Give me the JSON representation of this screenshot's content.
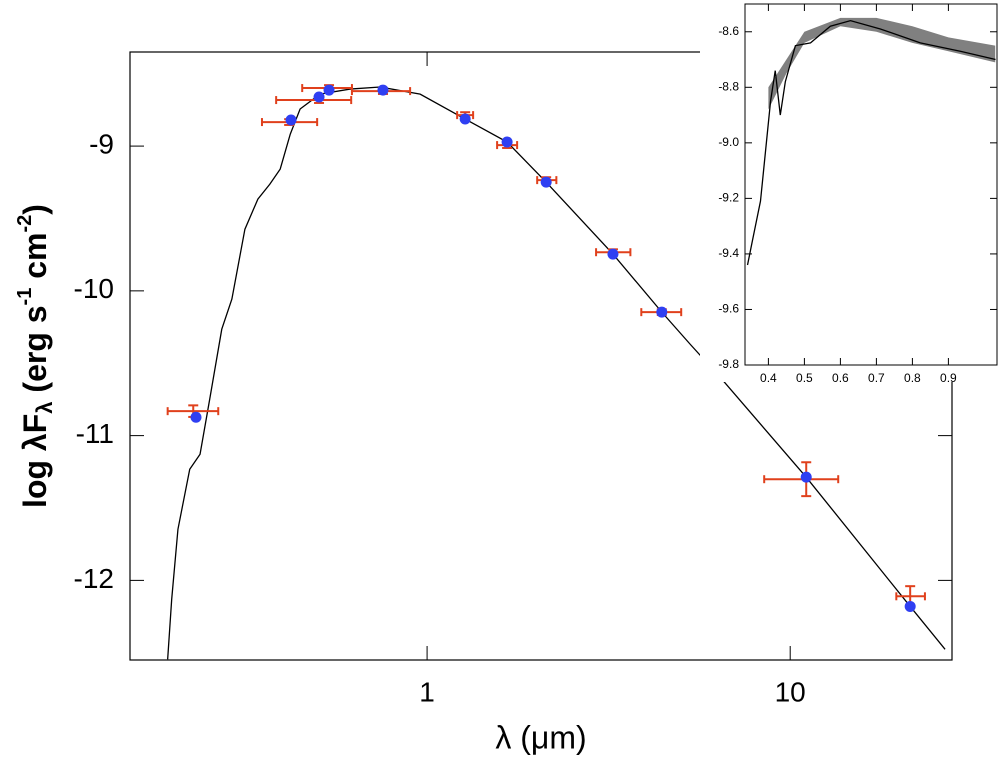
{
  "chart_data": [
    {
      "type": "sed",
      "xlabel": "λ (μm)",
      "ylabel": [
        "log λF",
        "λ",
        " (erg s",
        "-1",
        " cm",
        "-2",
        ")"
      ],
      "xlog": true,
      "xlim": [
        0.152,
        27.9
      ],
      "ylim": [
        -12.55,
        -8.35
      ],
      "xticks": [
        1,
        10
      ],
      "yticks": [
        -9,
        -10,
        -11,
        -12
      ],
      "model": {
        "color": "#000000",
        "x": [
          0.193,
          0.198,
          0.206,
          0.222,
          0.237,
          0.252,
          0.272,
          0.29,
          0.315,
          0.342,
          0.369,
          0.394,
          0.42,
          0.447,
          0.507,
          0.614,
          0.743,
          0.957,
          1.273,
          1.661,
          2.128,
          3.25,
          4.43,
          5.3,
          6.41,
          11.07,
          21.4,
          26.7
        ],
        "y": [
          -12.545,
          -12.131,
          -11.647,
          -11.232,
          -11.129,
          -10.748,
          -10.265,
          -10.057,
          -9.574,
          -9.366,
          -9.263,
          -9.159,
          -8.917,
          -8.744,
          -8.641,
          -8.606,
          -8.592,
          -8.641,
          -8.813,
          -8.972,
          -9.249,
          -9.746,
          -10.147,
          -10.368,
          -10.596,
          -11.287,
          -12.18,
          -12.476
        ]
      },
      "photometry": {
        "color": "#2f3ff2",
        "x": [
          0.231,
          0.422,
          0.504,
          0.537,
          0.756,
          1.273,
          1.661,
          2.128,
          3.25,
          4.43,
          11.07,
          21.4
        ],
        "y": [
          -10.873,
          -8.82,
          -8.661,
          -8.613,
          -8.613,
          -8.813,
          -8.972,
          -9.249,
          -9.746,
          -10.147,
          -11.287,
          -12.18
        ]
      },
      "observed": {
        "color": "#e0401c",
        "x": [
          0.227,
          0.417,
          0.504,
          0.537,
          0.756,
          1.273,
          1.661,
          2.128,
          3.25,
          4.43,
          11.07,
          21.4
        ],
        "y": [
          -10.831,
          -8.834,
          -8.682,
          -8.599,
          -8.62,
          -8.786,
          -8.993,
          -9.235,
          -9.733,
          -10.147,
          -11.301,
          -12.11
        ],
        "x_low": [
          0.193,
          0.351,
          0.384,
          0.453,
          0.621,
          1.21,
          1.559,
          2.01,
          2.92,
          3.89,
          8.48,
          19.6
        ],
        "x_high": [
          0.266,
          0.498,
          0.618,
          0.621,
          0.898,
          1.339,
          1.77,
          2.27,
          3.63,
          5.01,
          13.56,
          23.5
        ],
        "y_err": [
          0.04,
          0.02,
          0.02,
          0.02,
          0.02,
          0.02,
          0.02,
          0.02,
          0.02,
          0.02,
          0.117,
          0.07
        ]
      }
    },
    {
      "type": "inset",
      "xlim": [
        0.335,
        1.035
      ],
      "ylim": [
        -9.8,
        -8.5
      ],
      "xticks": [
        0.4,
        0.5,
        0.6,
        0.7,
        0.8,
        0.9
      ],
      "yticks": [
        -8.6,
        -8.8,
        {
          "value": -9,
          "label": "-9.0"
        },
        -9.2,
        -9.4,
        -9.6,
        -9.8
      ],
      "band": {
        "color": "#808080",
        "x": [
          0.4,
          0.45,
          0.5,
          0.6,
          0.7,
          0.8,
          0.9,
          1.03
        ],
        "lower": [
          -8.88,
          -8.75,
          -8.64,
          -8.58,
          -8.6,
          -8.64,
          -8.67,
          -8.71
        ],
        "upper": [
          -8.8,
          -8.7,
          -8.6,
          -8.55,
          -8.55,
          -8.58,
          -8.62,
          -8.65
        ]
      },
      "line": {
        "color": "#000000",
        "x": [
          0.342,
          0.356,
          0.378,
          0.406,
          0.419,
          0.433,
          0.447,
          0.475,
          0.517,
          0.572,
          0.628,
          0.711,
          0.822,
          0.933,
          1.031
        ],
        "y": [
          -9.44,
          -9.35,
          -9.21,
          -8.85,
          -8.74,
          -8.9,
          -8.78,
          -8.65,
          -8.64,
          -8.58,
          -8.56,
          -8.59,
          -8.64,
          -8.67,
          -8.7
        ]
      }
    }
  ]
}
